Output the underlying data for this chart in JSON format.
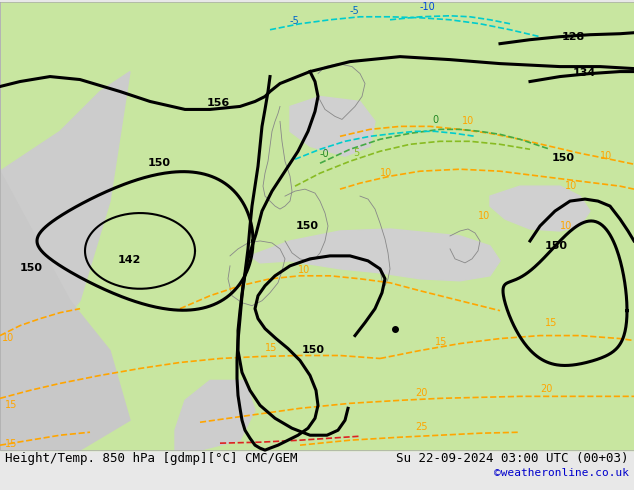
{
  "title_left": "Height/Temp. 850 hPa [gdmp][°C] CMC/GEM",
  "title_right": "Su 22-09-2024 03:00 UTC (00+03)",
  "credit": "©weatheronline.co.uk",
  "figsize": [
    6.34,
    4.9
  ],
  "dpi": 100,
  "bg_color": "#e8e8e8",
  "map_bg_light_green": "#c8e6a0",
  "map_bg_gray": "#c8c8c8",
  "map_bg_dark_gray": "#b0b0b0",
  "map_border": "#ffffff",
  "black_contour_color": "#000000",
  "orange_contour_color": "#ffa500",
  "cyan_contour_color": "#00bcd4",
  "green_contour_color": "#80c040",
  "red_contour_color": "#e0002a",
  "magenta_contour_color": "#cc00cc",
  "label_color_black": "#000000",
  "label_color_orange": "#ffa500",
  "label_color_cyan": "#00bcd4",
  "label_color_green": "#80c040",
  "label_color_red": "#e0002a",
  "bottom_text_color": "#000000",
  "credit_color": "#0000cc",
  "font_size_bottom": 9,
  "font_size_credit": 8,
  "font_size_labels": 7
}
